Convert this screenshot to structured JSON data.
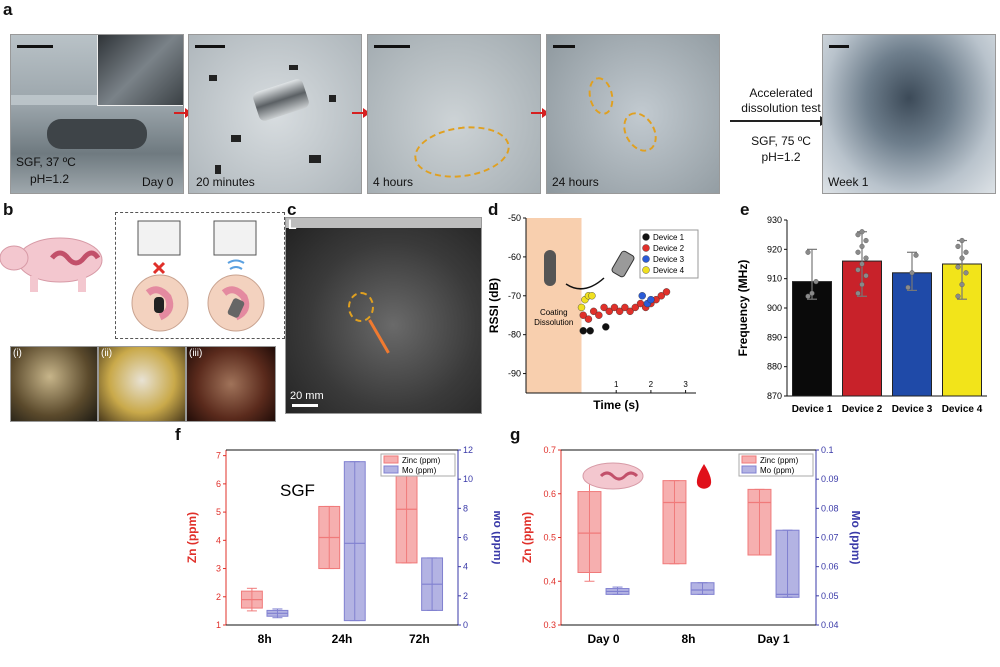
{
  "panels": {
    "a": {
      "label": "a",
      "photos": [
        {
          "caption_left": "SGF, 37 ºC",
          "caption_left2": "pH=1.2",
          "caption_right": "Day 0"
        },
        {
          "caption": "20 minutes"
        },
        {
          "caption": "4 hours"
        },
        {
          "caption": "24 hours"
        },
        {
          "caption": "Week 1"
        }
      ],
      "accel_text": [
        "Accelerated",
        "dissolution test"
      ],
      "accel_cond": [
        "SGF, 75 ºC",
        "pH=1.2"
      ]
    },
    "b": {
      "label": "b",
      "sub": [
        "(i)",
        "(ii)",
        "(iii)"
      ]
    },
    "c": {
      "label": "c",
      "corner": "L",
      "scale": "20 mm"
    },
    "d": {
      "label": "d",
      "coating": [
        "Coating",
        "Dissolution"
      ]
    },
    "e": {
      "label": "e"
    },
    "f": {
      "label": "f",
      "annotation": "SGF"
    },
    "g": {
      "label": "g"
    }
  },
  "chart_data": [
    {
      "id": "d",
      "type": "scatter",
      "xlabel": "Time (s)",
      "ylabel": "RSSI (dB)",
      "ylim": [
        -95,
        -50
      ],
      "yticks": [
        -50,
        -60,
        -70,
        -80,
        -90
      ],
      "xticks": [
        1,
        2,
        3
      ],
      "legend_position": "top-right",
      "series": [
        {
          "name": "Device 1",
          "color": "#111111",
          "x": [
            0.05,
            0.25,
            0.7
          ],
          "y": [
            -79,
            -79,
            -78
          ]
        },
        {
          "name": "Device 2",
          "color": "#e0302a",
          "x": [
            0.05,
            0.2,
            0.35,
            0.5,
            0.65,
            0.8,
            0.95,
            1.1,
            1.25,
            1.4,
            1.55,
            1.7,
            1.85,
            2.0,
            2.15,
            2.3,
            2.45
          ],
          "y": [
            -75,
            -76,
            -74,
            -75,
            -73,
            -74,
            -73,
            -74,
            -73,
            -74,
            -73,
            -72,
            -73,
            -72,
            -71,
            -70,
            -69
          ]
        },
        {
          "name": "Device 3",
          "color": "#2a5bd7",
          "x": [
            1.75,
            1.9,
            2.0
          ],
          "y": [
            -70,
            -72,
            -71
          ]
        },
        {
          "name": "Device 4",
          "color": "#f0e020",
          "x": [
            0.0,
            0.1,
            0.2,
            0.3
          ],
          "y": [
            -73,
            -71,
            -70,
            -70
          ]
        }
      ]
    },
    {
      "id": "e",
      "type": "bar",
      "ylabel": "Frequency (MHz)",
      "ylim": [
        870,
        930
      ],
      "yticks": [
        870,
        880,
        890,
        900,
        910,
        920,
        930
      ],
      "categories": [
        "Device 1",
        "Device 2",
        "Device 3",
        "Device 4"
      ],
      "values": [
        909,
        916,
        912,
        915
      ],
      "err_low": [
        903,
        904,
        906,
        903
      ],
      "err_high": [
        920,
        926,
        919,
        923
      ],
      "colors": [
        "#0a0a0a",
        "#c8222a",
        "#1f4aa8",
        "#f2e41a"
      ],
      "points": [
        [
          904,
          905,
          909,
          919
        ],
        [
          905,
          908,
          911,
          913,
          915,
          917,
          919,
          921,
          923,
          925,
          926
        ],
        [
          907,
          912,
          918
        ],
        [
          904,
          908,
          912,
          914,
          917,
          919,
          921,
          923
        ]
      ]
    },
    {
      "id": "f",
      "type": "box",
      "ylabel": "Zn (ppm)",
      "y2label": "Mo (ppm)",
      "ylim": [
        1,
        7.2
      ],
      "yticks": [
        1,
        2,
        3,
        4,
        5,
        6,
        7
      ],
      "y2lim": [
        0,
        12
      ],
      "y2ticks": [
        0,
        2,
        4,
        6,
        8,
        10,
        12
      ],
      "categories": [
        "8h",
        "24h",
        "72h"
      ],
      "legend": [
        "Zinc (ppm)",
        "Mo (ppm)"
      ],
      "series": [
        {
          "name": "Zinc (ppm)",
          "axis": "left",
          "color": "#f07a7a",
          "boxes": [
            [
              1.5,
              1.6,
              1.9,
              2.2,
              2.3
            ],
            [
              3.0,
              3.0,
              4.1,
              5.2,
              5.2
            ],
            [
              3.2,
              3.2,
              5.1,
              7.0,
              7.0
            ]
          ]
        },
        {
          "name": "Mo (ppm)",
          "axis": "right",
          "color": "#8080d0",
          "boxes": [
            [
              0.5,
              0.6,
              0.8,
              1.0,
              1.1
            ],
            [
              0.3,
              0.3,
              5.6,
              11.2,
              11.2
            ],
            [
              1.0,
              1.0,
              2.8,
              4.6,
              4.6
            ]
          ]
        }
      ]
    },
    {
      "id": "g",
      "type": "box",
      "ylabel": "Zn (ppm)",
      "y2label": "Mo (ppm)",
      "ylim": [
        0.3,
        0.7
      ],
      "yticks": [
        0.3,
        0.4,
        0.5,
        0.6,
        0.7
      ],
      "y2lim": [
        0.04,
        0.1
      ],
      "y2ticks": [
        0.04,
        0.05,
        0.06,
        0.07,
        0.08,
        0.09,
        0.1
      ],
      "categories": [
        "Day 0",
        "8h",
        "Day 1"
      ],
      "legend": [
        "Zinc (ppm)",
        "Mo (ppm)"
      ],
      "series": [
        {
          "name": "Zinc (ppm)",
          "axis": "left",
          "color": "#f07a7a",
          "boxes": [
            [
              0.4,
              0.42,
              0.51,
              0.605,
              0.63
            ],
            [
              0.44,
              0.44,
              0.58,
              0.63,
              0.63
            ],
            [
              0.46,
              0.46,
              0.58,
              0.61,
              0.61
            ]
          ]
        },
        {
          "name": "Mo (ppm)",
          "axis": "right",
          "color": "#8080d0",
          "boxes": [
            [
              0.0505,
              0.0505,
              0.0515,
              0.0525,
              0.053
            ],
            [
              0.0505,
              0.0505,
              0.052,
              0.0545,
              0.0545
            ],
            [
              0.0495,
              0.0495,
              0.0505,
              0.0725,
              0.0725
            ]
          ]
        }
      ]
    }
  ]
}
